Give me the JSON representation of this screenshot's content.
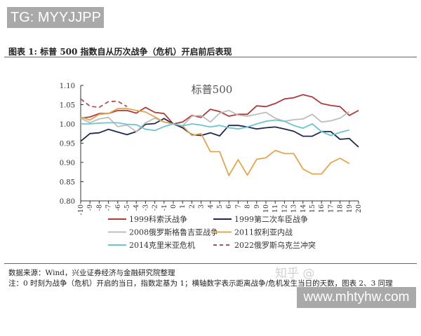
{
  "watermark_top": "TG: MYYJJPP",
  "watermark_bottom": "www.mhtyhw.com",
  "watermark_zhihu": "知乎 @",
  "caption": "图表 1:   标普 500 指数自从历次战争（危机）开启前后表现",
  "source": "数据来源：Wind，兴业证券经济与金融研究院整理",
  "note": "注：0 时刻为战争（危机）开启的当日，指数定基为 1；横轴数字表示距离战争/危机发生当日的天数，图表 2、3 同理",
  "chart_data": {
    "type": "line",
    "title": "标普500",
    "xlabel": "",
    "ylabel": "",
    "x": [
      -10,
      -9,
      -8,
      -7,
      -6,
      -5,
      -4,
      -3,
      -2,
      -1,
      0,
      1,
      2,
      3,
      4,
      5,
      6,
      7,
      8,
      9,
      10,
      11,
      12,
      13,
      14,
      15,
      16,
      17,
      18,
      19,
      20
    ],
    "ylim": [
      0.8,
      1.1
    ],
    "yticks": [
      "0.80",
      "0.85",
      "0.90",
      "0.95",
      "1.00",
      "1.05",
      "1.10"
    ],
    "grid": false,
    "legend_position": "bottom",
    "series": [
      {
        "name": "1999科索沃战争",
        "color": "#b03a3a",
        "dash": false,
        "values": [
          1.015,
          1.018,
          1.027,
          1.027,
          1.035,
          1.035,
          1.028,
          1.043,
          1.03,
          1.027,
          1.0,
          1.005,
          1.022,
          1.017,
          1.038,
          1.032,
          1.02,
          1.025,
          1.025,
          1.047,
          1.045,
          1.053,
          1.065,
          1.068,
          1.076,
          1.07,
          1.053,
          1.048,
          1.045,
          1.022,
          1.035
        ]
      },
      {
        "name": "1999第二次车臣战争",
        "color": "#1c2a4f",
        "dash": false,
        "values": [
          0.955,
          0.975,
          0.977,
          0.986,
          0.979,
          0.972,
          0.98,
          0.999,
          1.001,
          1.014,
          1.0,
          0.99,
          0.972,
          0.97,
          0.977,
          0.969,
          0.996,
          0.996,
          0.992,
          0.987,
          0.99,
          0.992,
          0.987,
          0.981,
          0.968,
          0.968,
          0.98,
          0.98,
          0.96,
          0.962,
          0.94
        ]
      },
      {
        "name": "2008俄罗斯格鲁吉亚战争",
        "color": "#bdbdbd",
        "dash": false,
        "values": [
          1.015,
          1.003,
          1.013,
          1.017,
          0.993,
          0.997,
          0.98,
          1.003,
          1.015,
          1.005,
          1.0,
          0.995,
          1.02,
          1.022,
          1.005,
          1.028,
          1.035,
          1.023,
          1.02,
          1.025,
          1.03,
          1.015,
          1.007,
          1.011,
          1.013,
          1.025,
          1.005,
          1.008,
          1.015,
          1.032,
          null
        ]
      },
      {
        "name": "2011叙利亚内战",
        "color": "#e0a550",
        "dash": false,
        "values": [
          1.018,
          1.01,
          1.025,
          1.027,
          1.04,
          1.04,
          1.035,
          1.031,
          1.018,
          1.005,
          1.0,
          0.995,
          0.97,
          0.975,
          0.928,
          0.928,
          0.866,
          0.907,
          0.867,
          0.908,
          0.912,
          0.931,
          0.923,
          0.923,
          0.883,
          0.87,
          0.87,
          0.899,
          0.911,
          0.897,
          null
        ]
      },
      {
        "name": "2014克里米亚危机",
        "color": "#6cc4d4",
        "dash": false,
        "values": [
          1.0,
          1.0,
          1.002,
          1.003,
          1.003,
          0.999,
          0.998,
          0.986,
          0.983,
          0.993,
          1.0,
          0.995,
          1.0,
          0.997,
          0.992,
          0.996,
          0.99,
          0.987,
          0.992,
          1.0,
          1.007,
          1.01,
          1.007,
          0.996,
          0.989,
          1.0,
          0.98,
          0.97,
          0.978,
          0.984,
          null
        ]
      },
      {
        "name": "2022俄罗斯乌克兰冲突",
        "color": "#a8525a",
        "dash": true,
        "values": [
          1.065,
          1.046,
          1.043,
          1.058,
          1.059,
          1.045,
          null,
          null,
          null,
          null,
          null,
          null,
          null,
          null,
          null,
          null,
          null,
          null,
          null,
          null,
          null,
          null,
          null,
          null,
          null,
          null,
          null,
          null,
          null,
          null,
          null
        ]
      }
    ]
  }
}
